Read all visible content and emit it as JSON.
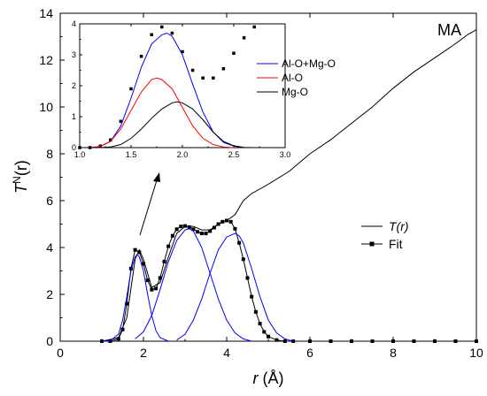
{
  "chart_data": [
    {
      "type": "line",
      "title": "",
      "xlabel_var": "r",
      "xlabel_unit": " (Å)",
      "ylabel_var": "T",
      "ylabel_sup": "N",
      "ylabel_suffix": "(r)",
      "xlim": [
        0,
        10
      ],
      "ylim": [
        0,
        14
      ],
      "xticks": [
        "0",
        "2",
        "4",
        "6",
        "8",
        "10"
      ],
      "yticks": [
        "0",
        "2",
        "4",
        "6",
        "8",
        "10",
        "12",
        "14"
      ],
      "corner_label": "MA",
      "grid": false,
      "legend_position": "lower-right",
      "series": [
        {
          "name": "T(r)",
          "style": "line",
          "color": "#000000",
          "x": [
            1.0,
            1.4,
            1.6,
            1.8,
            1.9,
            2.0,
            2.2,
            2.4,
            2.6,
            2.8,
            3.0,
            3.2,
            3.4,
            3.6,
            3.8,
            4.0,
            4.2,
            4.4,
            4.6,
            5.0,
            5.5,
            6.0,
            6.5,
            7.0,
            7.5,
            8.0,
            8.5,
            9.0,
            9.5,
            9.8,
            10.0
          ],
          "y": [
            0.0,
            0.15,
            1.0,
            3.5,
            3.9,
            3.5,
            2.3,
            2.5,
            3.6,
            4.6,
            4.9,
            4.9,
            4.75,
            4.75,
            5.0,
            5.15,
            5.4,
            6.0,
            6.3,
            6.7,
            7.25,
            8.0,
            8.6,
            9.3,
            10.0,
            10.8,
            11.5,
            12.1,
            12.7,
            13.1,
            13.3
          ]
        },
        {
          "name": "Fit",
          "style": "line-square-markers",
          "color": "#000000",
          "x": [
            1.0,
            1.2,
            1.4,
            1.5,
            1.6,
            1.7,
            1.8,
            1.9,
            2.0,
            2.1,
            2.2,
            2.3,
            2.4,
            2.5,
            2.6,
            2.7,
            2.8,
            2.9,
            3.0,
            3.1,
            3.2,
            3.3,
            3.4,
            3.5,
            3.6,
            3.7,
            3.8,
            3.9,
            4.0,
            4.1,
            4.2,
            4.3,
            4.4,
            4.5,
            4.6,
            4.7,
            4.8,
            4.9,
            5.0,
            5.2,
            5.4,
            5.6,
            6.0,
            6.5,
            7.0,
            7.5,
            8.0,
            8.5,
            9.0,
            9.5,
            10.0
          ],
          "y": [
            0.0,
            0.0,
            0.1,
            0.5,
            1.6,
            3.1,
            3.9,
            3.8,
            3.3,
            2.6,
            2.2,
            2.25,
            2.7,
            3.4,
            4.05,
            4.5,
            4.78,
            4.9,
            4.92,
            4.87,
            4.78,
            4.67,
            4.6,
            4.6,
            4.7,
            4.85,
            5.0,
            5.1,
            5.15,
            5.1,
            4.8,
            4.2,
            3.5,
            2.7,
            1.9,
            1.25,
            0.75,
            0.4,
            0.2,
            0.05,
            0.0,
            0.0,
            0.0,
            0.0,
            0.0,
            0.0,
            0.0,
            0.0,
            0.0,
            0.0,
            0.0
          ]
        },
        {
          "name": "",
          "style": "line",
          "color": "#0000ff",
          "x": [
            1.0,
            1.2,
            1.4,
            1.5,
            1.6,
            1.7,
            1.8,
            1.85,
            1.9,
            2.0,
            2.1,
            2.2,
            2.3,
            2.4,
            2.6
          ],
          "y": [
            0.0,
            0.02,
            0.3,
            0.9,
            1.9,
            3.0,
            3.6,
            3.7,
            3.6,
            3.0,
            2.0,
            1.1,
            0.45,
            0.15,
            0.0
          ]
        },
        {
          "name": "",
          "style": "line",
          "color": "#0000ff",
          "x": [
            1.8,
            2.0,
            2.2,
            2.4,
            2.6,
            2.8,
            3.0,
            3.1,
            3.2,
            3.4,
            3.6,
            3.8,
            4.0,
            4.2,
            4.4,
            4.6
          ],
          "y": [
            0.1,
            0.4,
            1.1,
            2.2,
            3.4,
            4.3,
            4.75,
            4.8,
            4.7,
            4.0,
            2.9,
            1.8,
            0.9,
            0.35,
            0.1,
            0.0
          ]
        },
        {
          "name": "",
          "style": "line",
          "color": "#0000ff",
          "x": [
            2.8,
            3.0,
            3.2,
            3.4,
            3.6,
            3.8,
            4.0,
            4.2,
            4.3,
            4.4,
            4.6,
            4.8,
            5.0,
            5.2,
            5.4,
            5.6
          ],
          "y": [
            0.05,
            0.3,
            0.9,
            1.8,
            2.9,
            3.9,
            4.45,
            4.6,
            4.5,
            4.2,
            3.1,
            1.9,
            0.9,
            0.35,
            0.1,
            0.0
          ]
        }
      ]
    },
    {
      "type": "line",
      "title": "",
      "xlabel": "",
      "ylabel": "",
      "xlim": [
        1.0,
        3.0
      ],
      "ylim": [
        0,
        4
      ],
      "xticks": [
        "1.0",
        "1.5",
        "2.0",
        "2.5",
        "3.0"
      ],
      "yticks": [
        "0",
        "1",
        "2",
        "3",
        "4"
      ],
      "grid": false,
      "legend_position": "right",
      "series": [
        {
          "name": "",
          "style": "square-markers",
          "color": "#000000",
          "x": [
            1.0,
            1.1,
            1.2,
            1.3,
            1.4,
            1.5,
            1.6,
            1.7,
            1.8,
            1.9,
            2.0,
            2.1,
            2.2,
            2.3,
            2.4,
            2.5,
            2.6,
            2.7
          ],
          "y": [
            0.0,
            0.0,
            0.05,
            0.25,
            0.85,
            1.9,
            2.95,
            3.65,
            3.9,
            3.7,
            3.1,
            2.5,
            2.25,
            2.25,
            2.55,
            3.05,
            3.55,
            3.9
          ]
        },
        {
          "name": "Al-O+Mg-O",
          "style": "line",
          "color": "#0000ff",
          "x": [
            1.0,
            1.1,
            1.2,
            1.3,
            1.4,
            1.5,
            1.6,
            1.7,
            1.8,
            1.85,
            1.9,
            2.0,
            2.1,
            2.2,
            2.3,
            2.4,
            2.5,
            2.6
          ],
          "y": [
            0.0,
            0.0,
            0.04,
            0.2,
            0.7,
            1.6,
            2.6,
            3.35,
            3.65,
            3.7,
            3.6,
            3.0,
            2.05,
            1.15,
            0.5,
            0.17,
            0.05,
            0.0
          ]
        },
        {
          "name": "Al-O",
          "style": "line",
          "color": "#ff0000",
          "x": [
            1.0,
            1.1,
            1.2,
            1.3,
            1.4,
            1.5,
            1.6,
            1.7,
            1.75,
            1.8,
            1.9,
            2.0,
            2.1,
            2.2,
            2.3,
            2.4,
            2.5
          ],
          "y": [
            0.0,
            0.0,
            0.04,
            0.2,
            0.6,
            1.2,
            1.8,
            2.2,
            2.25,
            2.2,
            1.9,
            1.3,
            0.7,
            0.3,
            0.1,
            0.02,
            0.0
          ]
        },
        {
          "name": "Mg-O",
          "style": "line",
          "color": "#000000",
          "x": [
            1.0,
            1.2,
            1.3,
            1.4,
            1.5,
            1.6,
            1.7,
            1.8,
            1.9,
            1.95,
            2.0,
            2.1,
            2.2,
            2.3,
            2.4,
            2.5,
            2.6,
            2.7
          ],
          "y": [
            0.0,
            0.0,
            0.02,
            0.1,
            0.3,
            0.6,
            0.95,
            1.25,
            1.45,
            1.48,
            1.45,
            1.25,
            0.9,
            0.5,
            0.2,
            0.06,
            0.01,
            0.0
          ]
        }
      ]
    }
  ]
}
